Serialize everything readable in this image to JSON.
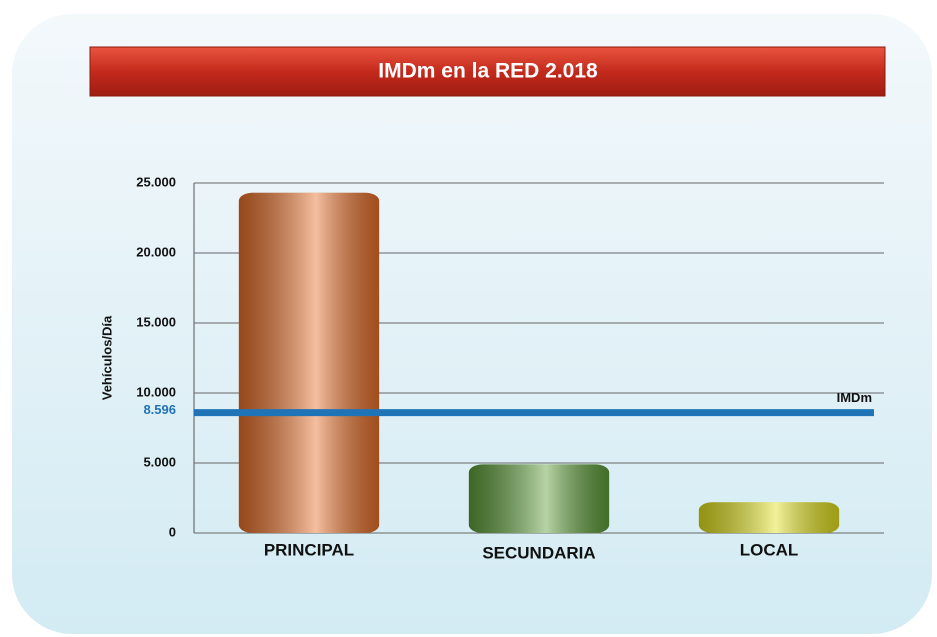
{
  "chart_data": {
    "type": "bar",
    "title": "IMDm en la RED 2.018",
    "y_label": "Vehículos/Día",
    "categories": [
      "PRINCIPAL",
      "SECUNDARIA",
      "LOCAL"
    ],
    "values": [
      24300,
      4900,
      2200
    ],
    "colors": [
      "#e8702a",
      "#5e9e3a",
      "#e2e21e"
    ],
    "ylim": [
      0,
      25000
    ],
    "yticks": [
      0,
      {
        "value": 5000,
        "label": "5.000"
      },
      {
        "value": 10000,
        "label": "10.000"
      },
      {
        "value": 15000,
        "label": "15.000"
      },
      {
        "value": 20000,
        "label": "20.000"
      },
      {
        "value": 25000,
        "label": "25.000"
      }
    ],
    "grid": true,
    "reference": {
      "name": "IMDm",
      "value": 8596,
      "label": "8.596",
      "color": "#1f74b8"
    }
  }
}
